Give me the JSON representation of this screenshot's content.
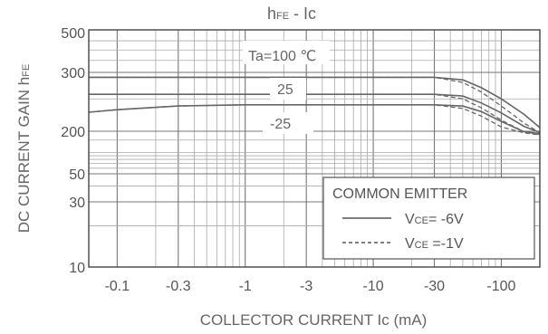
{
  "chart_data": {
    "type": "line",
    "title_main": "h",
    "title_sub": "FE",
    "title_rest": "  -  Ic",
    "xlabel": "COLLECTOR CURRENT Ic  (mA)",
    "ylabel_main": "DC CURRENT GAIN h",
    "ylabel_sub": "FE",
    "x_scale": "log",
    "xlim": [
      -0.06,
      -200
    ],
    "x_ticks": [
      {
        "value": -0.1,
        "label": "-0.1"
      },
      {
        "value": -0.3,
        "label": "-0.3"
      },
      {
        "value": -1,
        "label": "-1"
      },
      {
        "value": -3,
        "label": "-3"
      },
      {
        "value": -10,
        "label": "-10"
      },
      {
        "value": -30,
        "label": "-30"
      },
      {
        "value": -100,
        "label": "-100"
      }
    ],
    "y_ticks": [
      {
        "value": 500,
        "label": "500"
      },
      {
        "value": 300,
        "label": "300"
      },
      {
        "value": 200,
        "label": "200"
      },
      {
        "value": 50,
        "label": "50"
      },
      {
        "value": 30,
        "label": "30"
      },
      {
        "value": 10,
        "label": "10"
      }
    ],
    "grid": true,
    "annotations": [
      {
        "text": "Ta=100 ℃",
        "series": "100"
      },
      {
        "text": "25",
        "series": "25"
      },
      {
        "text": "-25",
        "series": "-25"
      }
    ],
    "legend": {
      "title": "COMMON EMITTER",
      "position": "bottom-right",
      "entries": [
        {
          "style": "solid",
          "v": "V",
          "sub": "CE",
          "rest": "= -6V"
        },
        {
          "style": "dashed",
          "v": "V",
          "sub": "CE",
          "rest": " =-1V"
        }
      ]
    },
    "series": [
      {
        "temp": "100",
        "condition": "VCE= -6V",
        "style": "solid",
        "x": [
          -0.06,
          -0.1,
          -0.3,
          -1,
          -3,
          -10,
          -30,
          -50,
          -70,
          -100,
          -150,
          -200
        ],
        "y": [
          290,
          290,
          290,
          290,
          290,
          290,
          290,
          285,
          270,
          250,
          225,
          205
        ]
      },
      {
        "temp": "100",
        "condition": "VCE =-1V",
        "style": "dashed",
        "x": [
          -0.06,
          -0.1,
          -0.3,
          -1,
          -3,
          -10,
          -30,
          -50,
          -70,
          -100,
          -150,
          -200
        ],
        "y": [
          290,
          290,
          290,
          290,
          290,
          290,
          290,
          280,
          262,
          238,
          212,
          190
        ]
      },
      {
        "temp": "25",
        "condition": "VCE= -6V",
        "style": "solid",
        "x": [
          -0.06,
          -0.1,
          -0.3,
          -1,
          -3,
          -10,
          -30,
          -50,
          -70,
          -100,
          -150,
          -200
        ],
        "y": [
          258,
          258,
          258,
          258,
          258,
          258,
          258,
          255,
          243,
          227,
          207,
          192
        ]
      },
      {
        "temp": "25",
        "condition": "VCE =-1V",
        "style": "dashed",
        "x": [
          -0.06,
          -0.1,
          -0.3,
          -1,
          -3,
          -10,
          -30,
          -50,
          -70,
          -100,
          -150,
          -200
        ],
        "y": [
          258,
          258,
          258,
          258,
          258,
          258,
          258,
          250,
          235,
          216,
          197,
          180
        ]
      },
      {
        "temp": "-25",
        "condition": "VCE= -6V",
        "style": "solid",
        "x": [
          -0.06,
          -0.1,
          -0.3,
          -1,
          -3,
          -10,
          -30,
          -50,
          -70,
          -100,
          -150,
          -200
        ],
        "y": [
          228,
          232,
          238,
          240,
          240,
          240,
          240,
          238,
          229,
          214,
          197,
          185
        ]
      },
      {
        "temp": "-25",
        "condition": "VCE =-1V",
        "style": "dashed",
        "x": [
          -0.06,
          -0.1,
          -0.3,
          -1,
          -3,
          -10,
          -30,
          -50,
          -70,
          -100,
          -150,
          -200
        ],
        "y": [
          228,
          232,
          238,
          240,
          240,
          240,
          240,
          234,
          222,
          206,
          190,
          177
        ]
      }
    ]
  }
}
